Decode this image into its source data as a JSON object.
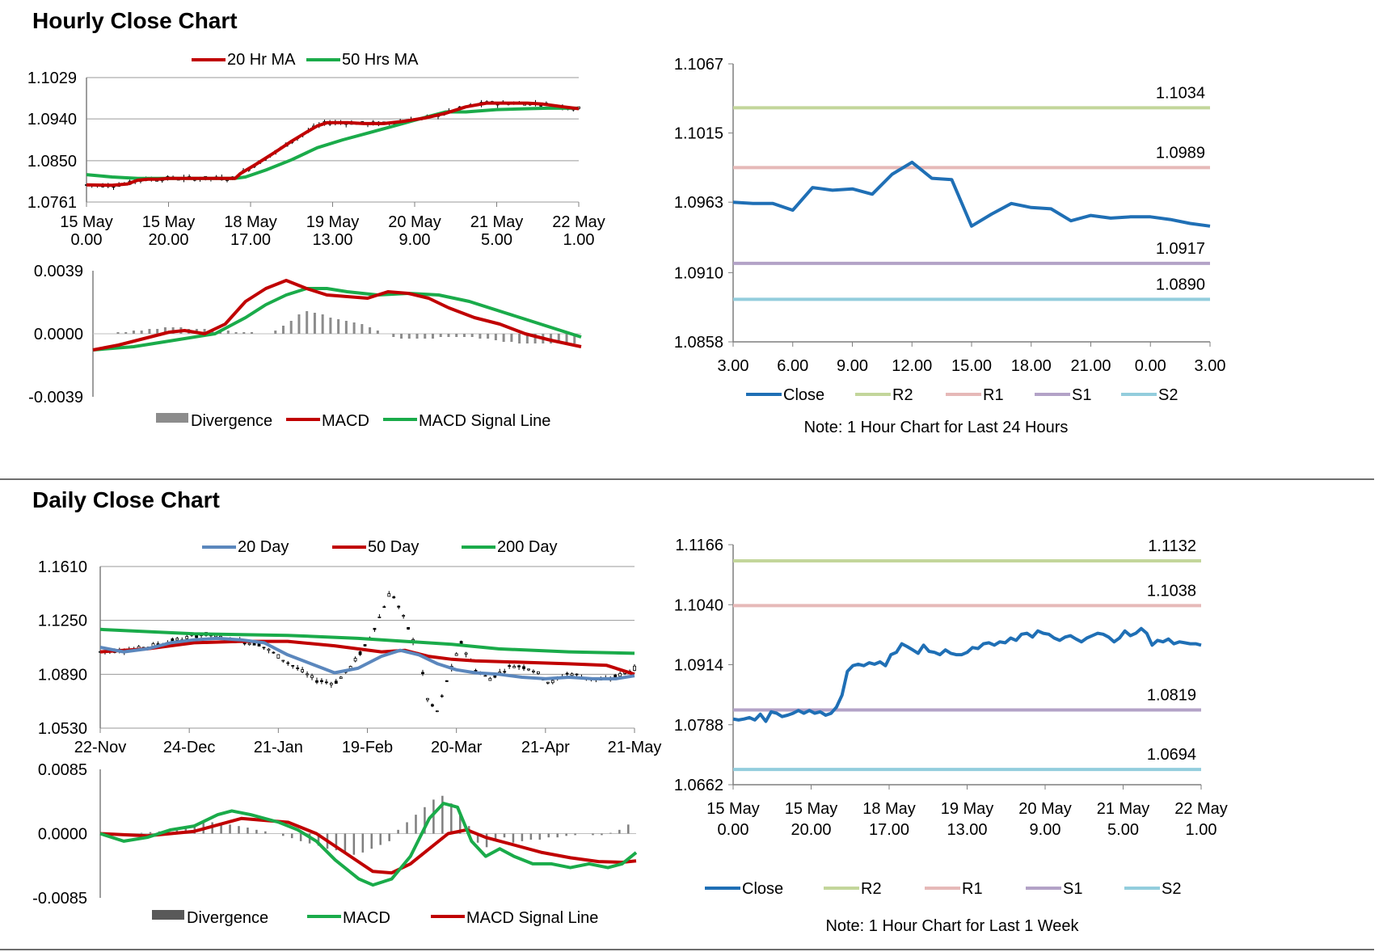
{
  "hourly": {
    "section_title": "Hourly Close Chart",
    "price_chart": {
      "type": "candlestick-line",
      "legend": [
        {
          "name": "20 Hr MA",
          "color": "#c00000"
        },
        {
          "name": "50 Hrs MA",
          "color": "#1aab4a"
        }
      ],
      "y_ticks": [
        "1.1029",
        "1.0940",
        "1.0850",
        "1.0761"
      ],
      "ylim": [
        1.0761,
        1.1029
      ],
      "x_ticks": [
        [
          "15 May",
          "0.00"
        ],
        [
          "15 May",
          "20.00"
        ],
        [
          "18 May",
          "17.00"
        ],
        [
          "19 May",
          "13.00"
        ],
        [
          "20 May",
          "9.00"
        ],
        [
          "21 May",
          "5.00"
        ],
        [
          "22 May",
          "1.00"
        ]
      ],
      "ma20": [
        [
          0,
          1.0798
        ],
        [
          5,
          1.0797
        ],
        [
          8,
          1.08
        ],
        [
          10,
          1.0808
        ],
        [
          12,
          1.081
        ],
        [
          14,
          1.081
        ],
        [
          16,
          1.0812
        ],
        [
          18,
          1.0812
        ],
        [
          20,
          1.0812
        ],
        [
          23,
          1.0812
        ],
        [
          26,
          1.0812
        ],
        [
          29,
          1.0812
        ],
        [
          30,
          1.0822
        ],
        [
          33,
          1.0842
        ],
        [
          37,
          1.087
        ],
        [
          40,
          1.0892
        ],
        [
          43,
          1.0912
        ],
        [
          45,
          1.0925
        ],
        [
          47,
          1.0932
        ],
        [
          49,
          1.0932
        ],
        [
          51,
          1.0932
        ],
        [
          54,
          1.093
        ],
        [
          58,
          1.093
        ],
        [
          62,
          1.0935
        ],
        [
          66,
          1.0942
        ],
        [
          70,
          1.0952
        ],
        [
          74,
          1.0966
        ],
        [
          78,
          1.0974
        ],
        [
          82,
          1.0974
        ],
        [
          86,
          1.0974
        ],
        [
          89,
          1.0972
        ],
        [
          93,
          1.0966
        ],
        [
          96,
          1.0962
        ]
      ],
      "ma50": [
        [
          0,
          1.082
        ],
        [
          5,
          1.0815
        ],
        [
          10,
          1.0812
        ],
        [
          15,
          1.0812
        ],
        [
          20,
          1.0812
        ],
        [
          25,
          1.0812
        ],
        [
          29,
          1.0812
        ],
        [
          31,
          1.0815
        ],
        [
          35,
          1.083
        ],
        [
          40,
          1.0852
        ],
        [
          45,
          1.0878
        ],
        [
          50,
          1.0895
        ],
        [
          55,
          1.091
        ],
        [
          60,
          1.0925
        ],
        [
          65,
          1.094
        ],
        [
          70,
          1.0955
        ],
        [
          74,
          1.0955
        ],
        [
          80,
          1.096
        ],
        [
          86,
          1.0962
        ],
        [
          90,
          1.0963
        ],
        [
          96,
          1.0963
        ]
      ]
    },
    "macd_chart": {
      "type": "macd",
      "y_ticks": [
        "0.0039",
        "0.0000",
        "-0.0039"
      ],
      "ylim": [
        -0.0039,
        0.0039
      ],
      "legend": [
        {
          "name": "Divergence",
          "color": "#8c8c8c"
        },
        {
          "name": "MACD",
          "color": "#c00000"
        },
        {
          "name": "MACD Signal Line",
          "color": "#1aab4a"
        }
      ],
      "macd": [
        [
          0,
          -0.001
        ],
        [
          5,
          -0.0007
        ],
        [
          10,
          -0.0003
        ],
        [
          15,
          0.0001
        ],
        [
          18,
          0.0002
        ],
        [
          22,
          0.0
        ],
        [
          26,
          0.0006
        ],
        [
          30,
          0.002
        ],
        [
          34,
          0.0028
        ],
        [
          38,
          0.0033
        ],
        [
          42,
          0.0028
        ],
        [
          46,
          0.0024
        ],
        [
          50,
          0.0023
        ],
        [
          54,
          0.0022
        ],
        [
          58,
          0.0026
        ],
        [
          62,
          0.0025
        ],
        [
          66,
          0.0022
        ],
        [
          70,
          0.0016
        ],
        [
          75,
          0.001
        ],
        [
          80,
          0.0006
        ],
        [
          85,
          0.0
        ],
        [
          90,
          -0.0004
        ],
        [
          96,
          -0.0008
        ]
      ],
      "signal": [
        [
          0,
          -0.001
        ],
        [
          8,
          -0.0008
        ],
        [
          16,
          -0.0004
        ],
        [
          24,
          0.0
        ],
        [
          30,
          0.001
        ],
        [
          34,
          0.0018
        ],
        [
          38,
          0.0024
        ],
        [
          42,
          0.0028
        ],
        [
          46,
          0.0028
        ],
        [
          50,
          0.0026
        ],
        [
          56,
          0.0024
        ],
        [
          62,
          0.0025
        ],
        [
          68,
          0.0024
        ],
        [
          74,
          0.002
        ],
        [
          80,
          0.0014
        ],
        [
          86,
          0.0008
        ],
        [
          92,
          0.0002
        ],
        [
          96,
          -0.0002
        ]
      ],
      "divergence": [
        0.0,
        0.0,
        0.0001,
        0.0001,
        0.0002,
        0.0002,
        0.0003,
        0.0003,
        0.0004,
        0.0004,
        0.0004,
        0.0003,
        0.0003,
        0.0003,
        0.0002,
        0.0002,
        0.0002,
        0.0001,
        0.0001,
        0.0001,
        0.0,
        0.0,
        0.0002,
        0.0005,
        0.0008,
        0.0012,
        0.0014,
        0.0013,
        0.0012,
        0.001,
        0.0009,
        0.0008,
        0.0007,
        0.0006,
        0.0004,
        0.0002,
        0.0,
        -0.0002,
        -0.0003,
        -0.0003,
        -0.0003,
        -0.0003,
        -0.0003,
        -0.0002,
        -0.0002,
        -0.0002,
        -0.0002,
        -0.0002,
        -0.0003,
        -0.0003,
        -0.0004,
        -0.0005,
        -0.0005,
        -0.0006,
        -0.0006,
        -0.0006,
        -0.0006,
        -0.0006,
        -0.0006,
        -0.0006,
        -0.0006
      ]
    },
    "sr_chart": {
      "type": "line",
      "y_ticks": [
        "1.1067",
        "1.1015",
        "1.0963",
        "1.0910",
        "1.0858"
      ],
      "ylim": [
        1.0858,
        1.1067
      ],
      "x_ticks": [
        "3.00",
        "6.00",
        "9.00",
        "12.00",
        "15.00",
        "18.00",
        "21.00",
        "0.00",
        "3.00"
      ],
      "close": [
        1.0963,
        1.0962,
        1.0962,
        1.0957,
        1.0974,
        1.0972,
        1.0973,
        1.0969,
        1.0984,
        1.0993,
        1.0981,
        1.098,
        1.0945,
        1.0954,
        1.0962,
        1.0959,
        1.0958,
        1.0949,
        1.0953,
        1.0951,
        1.0952,
        1.0952,
        1.095,
        1.0947,
        1.0945
      ],
      "levels": [
        {
          "name": "R2",
          "value": 1.1034,
          "label": "1.1034",
          "color": "#c3d69b"
        },
        {
          "name": "R1",
          "value": 1.0989,
          "label": "1.0989",
          "color": "#e6b9b8"
        },
        {
          "name": "S1",
          "value": 1.0917,
          "label": "1.0917",
          "color": "#b3a2c7"
        },
        {
          "name": "S2",
          "value": 1.089,
          "label": "1.0890",
          "color": "#93cddd"
        }
      ],
      "legend": [
        {
          "name": "Close",
          "color": "#1f6fb5"
        },
        {
          "name": "R2",
          "color": "#c3d69b"
        },
        {
          "name": "R1",
          "color": "#e6b9b8"
        },
        {
          "name": "S1",
          "color": "#b3a2c7"
        },
        {
          "name": "S2",
          "color": "#93cddd"
        }
      ],
      "note": "Note: 1 Hour Chart for Last 24 Hours"
    }
  },
  "daily": {
    "section_title": "Daily Close Chart",
    "price_chart": {
      "type": "candlestick-line",
      "legend": [
        {
          "name": "20 Day",
          "color": "#5b87bd"
        },
        {
          "name": "50 Day",
          "color": "#c00000"
        },
        {
          "name": "200 Day",
          "color": "#1aab4a"
        }
      ],
      "y_ticks": [
        "1.1610",
        "1.1250",
        "1.0890",
        "1.0530"
      ],
      "ylim": [
        1.053,
        1.161
      ],
      "x_ticks": [
        "22-Nov",
        "24-Dec",
        "21-Jan",
        "19-Feb",
        "20-Mar",
        "21-Apr",
        "21-May"
      ],
      "ma20": [
        [
          0,
          1.107
        ],
        [
          5,
          1.104
        ],
        [
          10,
          1.106
        ],
        [
          15,
          1.11
        ],
        [
          20,
          1.112
        ],
        [
          25,
          1.113
        ],
        [
          30,
          1.112
        ],
        [
          35,
          1.11
        ],
        [
          40,
          1.102
        ],
        [
          45,
          1.096
        ],
        [
          50,
          1.09
        ],
        [
          55,
          1.093
        ],
        [
          60,
          1.101
        ],
        [
          64,
          1.105
        ],
        [
          68,
          1.102
        ],
        [
          72,
          1.096
        ],
        [
          76,
          1.092
        ],
        [
          80,
          1.09
        ],
        [
          85,
          1.089
        ],
        [
          90,
          1.087
        ],
        [
          95,
          1.086
        ],
        [
          100,
          1.087
        ],
        [
          105,
          1.086
        ],
        [
          110,
          1.086
        ],
        [
          114,
          1.088
        ]
      ],
      "ma50": [
        [
          0,
          1.104
        ],
        [
          10,
          1.106
        ],
        [
          20,
          1.11
        ],
        [
          30,
          1.111
        ],
        [
          40,
          1.111
        ],
        [
          50,
          1.108
        ],
        [
          60,
          1.104
        ],
        [
          65,
          1.105
        ],
        [
          70,
          1.101
        ],
        [
          75,
          1.099
        ],
        [
          80,
          1.098
        ],
        [
          90,
          1.097
        ],
        [
          100,
          1.096
        ],
        [
          108,
          1.095
        ],
        [
          114,
          1.089
        ]
      ],
      "ma200": [
        [
          0,
          1.119
        ],
        [
          20,
          1.116
        ],
        [
          40,
          1.115
        ],
        [
          55,
          1.113
        ],
        [
          65,
          1.111
        ],
        [
          75,
          1.109
        ],
        [
          85,
          1.106
        ],
        [
          100,
          1.104
        ],
        [
          114,
          1.103
        ]
      ]
    },
    "macd_chart": {
      "type": "macd",
      "y_ticks": [
        "0.0085",
        "0.0000",
        "-0.0085"
      ],
      "ylim": [
        -0.0085,
        0.0085
      ],
      "legend": [
        {
          "name": "Divergence",
          "color": "#595959"
        },
        {
          "name": "MACD",
          "color": "#1aab4a"
        },
        {
          "name": "MACD Signal Line",
          "color": "#c00000"
        }
      ],
      "macd": [
        [
          0,
          0.0
        ],
        [
          5,
          -0.001
        ],
        [
          10,
          -0.0005
        ],
        [
          15,
          0.0005
        ],
        [
          20,
          0.001
        ],
        [
          25,
          0.0025
        ],
        [
          28,
          0.003
        ],
        [
          32,
          0.0025
        ],
        [
          38,
          0.0015
        ],
        [
          42,
          0.0005
        ],
        [
          46,
          -0.001
        ],
        [
          50,
          -0.0035
        ],
        [
          55,
          -0.006
        ],
        [
          58,
          -0.0068
        ],
        [
          62,
          -0.006
        ],
        [
          66,
          -0.003
        ],
        [
          70,
          0.002
        ],
        [
          73,
          0.004
        ],
        [
          76,
          0.0035
        ],
        [
          79,
          -0.001
        ],
        [
          82,
          -0.003
        ],
        [
          85,
          -0.002
        ],
        [
          88,
          -0.003
        ],
        [
          92,
          -0.004
        ],
        [
          96,
          -0.004
        ],
        [
          100,
          -0.0045
        ],
        [
          104,
          -0.004
        ],
        [
          108,
          -0.0045
        ],
        [
          111,
          -0.004
        ],
        [
          114,
          -0.0025
        ]
      ],
      "signal": [
        [
          0,
          0.0
        ],
        [
          10,
          -0.0003
        ],
        [
          20,
          0.0003
        ],
        [
          30,
          0.002
        ],
        [
          40,
          0.0015
        ],
        [
          46,
          0.0
        ],
        [
          52,
          -0.0025
        ],
        [
          58,
          -0.005
        ],
        [
          62,
          -0.0052
        ],
        [
          66,
          -0.004
        ],
        [
          70,
          -0.002
        ],
        [
          74,
          0.0
        ],
        [
          78,
          0.0005
        ],
        [
          82,
          -0.0005
        ],
        [
          88,
          -0.0015
        ],
        [
          94,
          -0.0025
        ],
        [
          100,
          -0.0032
        ],
        [
          106,
          -0.0037
        ],
        [
          111,
          -0.0038
        ],
        [
          114,
          -0.0036
        ]
      ],
      "divergence": [
        0.0,
        -0.0002,
        -0.0002,
        -0.0003,
        0.0001,
        0.0002,
        0.0003,
        0.0004,
        0.0008,
        0.001,
        0.0012,
        0.0014,
        0.0015,
        0.0014,
        0.0012,
        0.001,
        0.0008,
        0.0005,
        0.0003,
        0.0,
        -0.0003,
        -0.0006,
        -0.001,
        -0.0013,
        -0.0016,
        -0.002,
        -0.0022,
        -0.0025,
        -0.0028,
        -0.0025,
        -0.002,
        -0.0015,
        -0.001,
        0.0005,
        0.0015,
        0.0025,
        0.0035,
        0.0045,
        0.005,
        0.004,
        0.0025,
        0.001,
        -0.0012,
        -0.0018,
        -0.001,
        -0.0005,
        -0.0012,
        -0.001,
        -0.0008,
        -0.0008,
        -0.0005,
        -0.0005,
        -0.0003,
        -0.0002,
        0.0,
        -0.0002,
        -0.0002,
        0.0001,
        0.0005,
        0.0012
      ]
    },
    "sr_chart": {
      "type": "line",
      "y_ticks": [
        "1.1166",
        "1.1040",
        "1.0914",
        "1.0788",
        "1.0662"
      ],
      "ylim": [
        1.0662,
        1.1166
      ],
      "x_ticks": [
        [
          "15 May",
          "0.00"
        ],
        [
          "15 May",
          "20.00"
        ],
        [
          "18 May",
          "17.00"
        ],
        [
          "19 May",
          "13.00"
        ],
        [
          "20 May",
          "9.00"
        ],
        [
          "21 May",
          "5.00"
        ],
        [
          "22 May",
          "1.00"
        ]
      ],
      "close": [
        1.08,
        1.0798,
        1.08,
        1.0803,
        1.0798,
        1.081,
        1.0795,
        1.0815,
        1.0812,
        1.0805,
        1.0808,
        1.0812,
        1.0818,
        1.0812,
        1.0818,
        1.0812,
        1.0815,
        1.0808,
        1.0812,
        1.0825,
        1.085,
        1.09,
        1.0912,
        1.0915,
        1.0912,
        1.0918,
        1.0915,
        1.092,
        1.0912,
        1.0935,
        1.094,
        1.0958,
        1.0952,
        1.0945,
        1.0938,
        1.0955,
        1.0942,
        1.094,
        1.0935,
        1.0945,
        1.0938,
        1.0935,
        1.0935,
        1.094,
        1.095,
        1.0948,
        1.0958,
        1.096,
        1.0955,
        1.0962,
        1.096,
        1.097,
        1.0965,
        1.0978,
        1.098,
        1.0972,
        1.0985,
        1.098,
        1.0978,
        1.097,
        1.0965,
        1.0972,
        1.0975,
        1.0968,
        1.0962,
        1.097,
        1.0975,
        1.098,
        1.0978,
        1.0972,
        1.0962,
        1.097,
        1.0985,
        1.0975,
        1.098,
        1.099,
        1.098,
        1.0955,
        1.0965,
        1.0962,
        1.0968,
        1.0958,
        1.0962,
        1.096,
        1.0958,
        1.0958,
        1.0955
      ],
      "levels": [
        {
          "name": "R2",
          "value": 1.1132,
          "label": "1.1132",
          "color": "#c3d69b"
        },
        {
          "name": "R1",
          "value": 1.1038,
          "label": "1.1038",
          "color": "#e6b9b8"
        },
        {
          "name": "S1",
          "value": 1.0819,
          "label": "1.0819",
          "color": "#b3a2c7"
        },
        {
          "name": "S2",
          "value": 1.0694,
          "label": "1.0694",
          "color": "#93cddd"
        }
      ],
      "legend": [
        {
          "name": "Close",
          "color": "#1f6fb5"
        },
        {
          "name": "R2",
          "color": "#c3d69b"
        },
        {
          "name": "R1",
          "color": "#e6b9b8"
        },
        {
          "name": "S1",
          "color": "#b3a2c7"
        },
        {
          "name": "S2",
          "color": "#93cddd"
        }
      ],
      "note": "Note: 1 Hour Chart for Last 1 Week"
    }
  }
}
